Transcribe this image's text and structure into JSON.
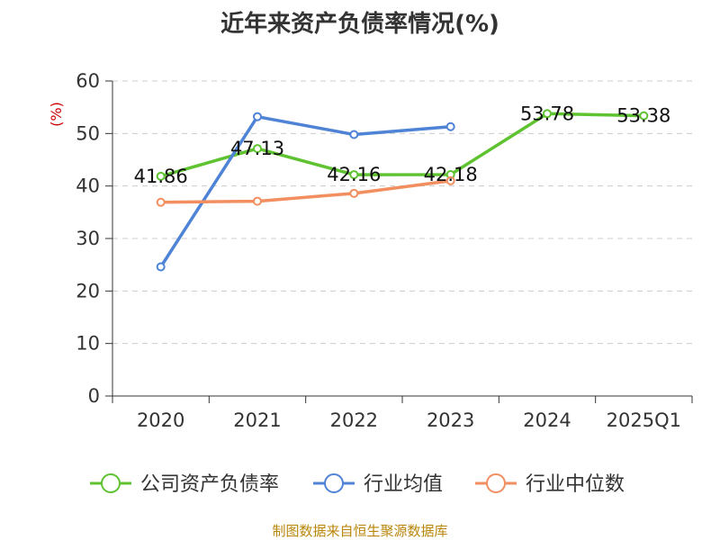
{
  "chart_data": {
    "type": "line",
    "title": "近年来资产负债率情况(%)",
    "ylabel": "(%)",
    "categories": [
      "2020",
      "2021",
      "2022",
      "2023",
      "2024",
      "2025Q1"
    ],
    "ylim": [
      0,
      60
    ],
    "yticks": [
      0,
      10,
      20,
      30,
      40,
      50,
      60
    ],
    "grid": true,
    "legend_position": "bottom",
    "series": [
      {
        "name": "公司资产负债率",
        "color": "#5fc331",
        "values": [
          41.86,
          47.13,
          42.16,
          42.18,
          53.78,
          53.38
        ],
        "labels": [
          "41.86",
          "47.13",
          "42.16",
          "42.18",
          "53.78",
          "53.38"
        ]
      },
      {
        "name": "行业均值",
        "color": "#4f83d6",
        "values": [
          24.6,
          53.2,
          49.8,
          51.3,
          null,
          null
        ]
      },
      {
        "name": "行业中位数",
        "color": "#f28e5f",
        "values": [
          36.9,
          37.1,
          38.6,
          41.0,
          null,
          null
        ]
      }
    ]
  },
  "footer": {
    "source": "制图数据来自恒生聚源数据库"
  },
  "colors": {
    "ylabel": "#cc0000",
    "source": "#b8860b"
  }
}
